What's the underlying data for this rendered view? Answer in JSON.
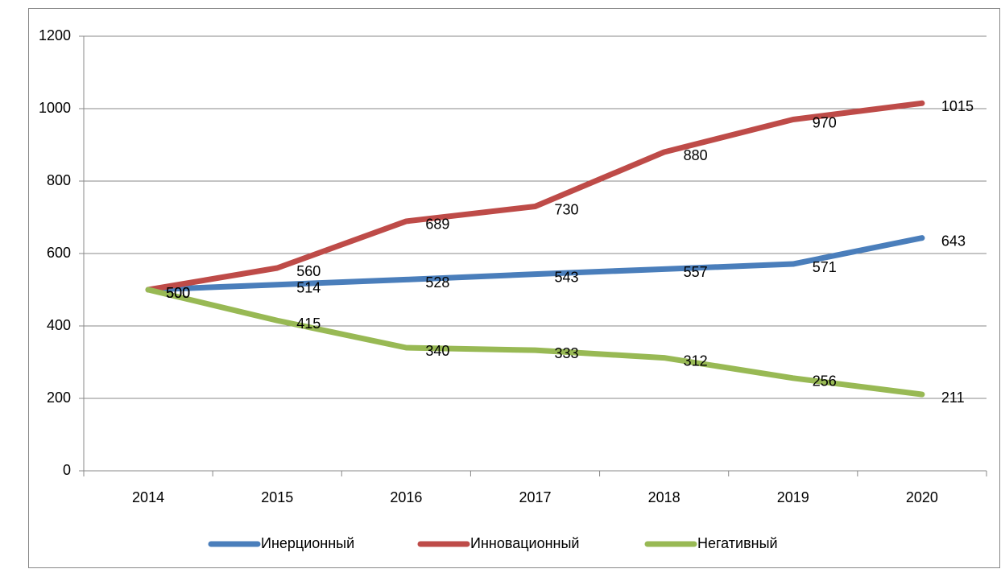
{
  "chart_data": {
    "type": "line",
    "categories": [
      "2014",
      "2015",
      "2016",
      "2017",
      "2018",
      "2019",
      "2020"
    ],
    "series": [
      {
        "name": "Инерционный",
        "color": "#4a7ebb",
        "values": [
          500,
          514,
          528,
          543,
          557,
          571,
          643
        ]
      },
      {
        "name": "Инновационный",
        "color": "#be4b48",
        "values": [
          500,
          560,
          689,
          730,
          880,
          970,
          1015
        ]
      },
      {
        "name": "Негативный",
        "color": "#98b954",
        "values": [
          500,
          415,
          340,
          333,
          312,
          256,
          211
        ]
      }
    ],
    "ylim": [
      0,
      1200
    ],
    "yticks": [
      0,
      200,
      400,
      600,
      800,
      1000,
      1200
    ],
    "grid": true,
    "legend": "bottom"
  }
}
